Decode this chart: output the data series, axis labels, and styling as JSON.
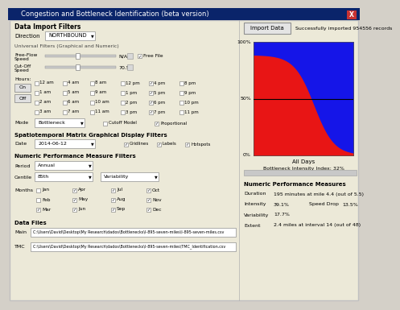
{
  "title": "Congestion and Bottleneck Identification (beta version)",
  "bg_color": "#d4d0c8",
  "panel_color": "#ece9d8",
  "section_headers": [
    "Data Import Filters",
    "Universal Filters (Graphical and Numeric)",
    "Spatiotemporal Matrix Graphical Display Filters",
    "Numeric Performance Measure Filters",
    "Data Files"
  ],
  "direction_value": "NORTHBOUND",
  "free_flow_value": "N/A",
  "cutoff_value": "70.5",
  "hours_rows": [
    [
      "12 am",
      "4 am",
      "8 am",
      "12 pm",
      "4 pm",
      "8 pm"
    ],
    [
      "1 am",
      "5 am",
      "9 am",
      "1 pm",
      "5 pm",
      "9 pm"
    ],
    [
      "2 am",
      "6 am",
      "10 am",
      "2 pm",
      "6 pm",
      "10 pm"
    ],
    [
      "3 am",
      "7 am",
      "11 am",
      "3 pm",
      "7 pm",
      "11 pm"
    ]
  ],
  "hours_checked": [
    [
      false,
      false,
      false,
      false,
      true,
      false
    ],
    [
      false,
      false,
      false,
      false,
      true,
      false
    ],
    [
      false,
      false,
      false,
      false,
      true,
      false
    ],
    [
      false,
      false,
      false,
      false,
      true,
      false
    ]
  ],
  "mode_value": "Bottleneck",
  "cutoff_model": "Cutoff Model",
  "proportional": "Proportional",
  "date_value": "2014-06-12",
  "period_value": "Annual",
  "centile_value": "85th",
  "variability_value": "Variability",
  "months": [
    [
      "Jan",
      "Apr",
      "Jul",
      "Oct"
    ],
    [
      "Feb",
      "May",
      "Aug",
      "Nov"
    ],
    [
      "Mar",
      "Jun",
      "Sep",
      "Dec"
    ]
  ],
  "months_checked": [
    [
      false,
      true,
      true,
      true
    ],
    [
      false,
      true,
      true,
      true
    ],
    [
      true,
      true,
      true,
      true
    ]
  ],
  "main_path": "C:\\Users\\David\\Desktop\\My Research\\dados\\Bottlenecks\\I-895-seven-miles\\I-895-seven-miles.csv",
  "tmc_path": "C:\\Users\\David\\Desktop\\My Research\\dados\\Bottlenecks\\I-895-seven-miles\\TMC_Identification.csv",
  "import_btn": "Import Data",
  "import_success": "Successfully imported 954556 records",
  "arm_title": "All Days",
  "arm_subtitle": "Bottleneck Intensity Index: 32%",
  "arm_blue": "#1515e8",
  "arm_red": "#e81515",
  "num_perf_title": "Numeric Performance Measures",
  "duration_label": "Duration",
  "duration_value": "195 minutes at mile 4.4 (out of 5.5)",
  "intensity_label": "Intensity",
  "intensity_value": "39.1%",
  "speed_drop_label": "Speed Drop",
  "speed_drop_value": "13.5%",
  "variability_label": "Variability",
  "variability_perf_value": "17.7%",
  "extent_label": "Extent",
  "extent_value": "2.4 miles at interval 14 (out of 48)"
}
